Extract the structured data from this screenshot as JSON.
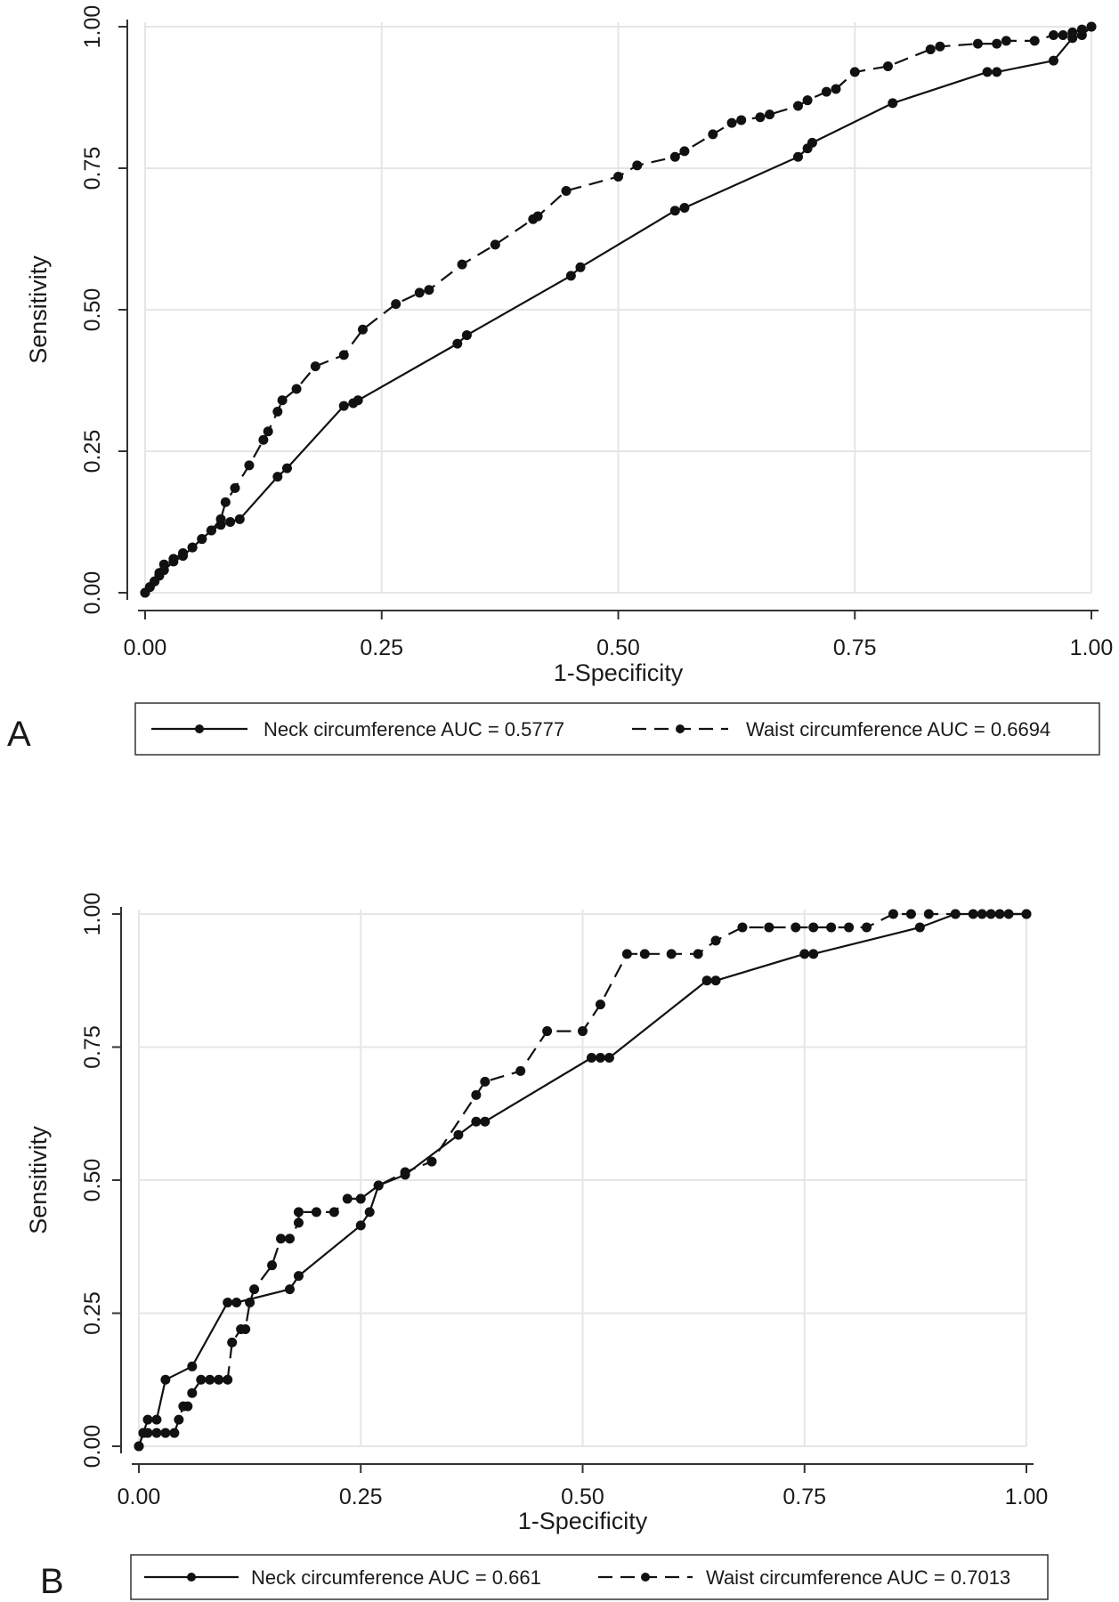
{
  "chart_data": [
    {
      "type": "line",
      "panel": "A",
      "xlabel": "1-Specificity",
      "ylabel": "Sensitivity",
      "xlim": [
        0,
        1
      ],
      "ylim": [
        0,
        1
      ],
      "grid": true,
      "legend_position": "bottom",
      "xticks": [
        "0.00",
        "0.25",
        "0.50",
        "0.75",
        "1.00"
      ],
      "yticks": [
        "0.00",
        "0.25",
        "0.50",
        "0.75",
        "1.00"
      ],
      "series": [
        {
          "name": "Neck circumference AUC = 0.5777",
          "style": "solid",
          "x": [
            0,
            0.005,
            0.01,
            0.015,
            0.02,
            0.03,
            0.04,
            0.05,
            0.06,
            0.07,
            0.08,
            0.09,
            0.1,
            0.14,
            0.15,
            0.21,
            0.22,
            0.225,
            0.33,
            0.34,
            0.45,
            0.46,
            0.56,
            0.57,
            0.69,
            0.7,
            0.705,
            0.79,
            0.89,
            0.9,
            0.96,
            0.98,
            0.99,
            1.0
          ],
          "y": [
            0,
            0.01,
            0.02,
            0.03,
            0.04,
            0.055,
            0.065,
            0.08,
            0.095,
            0.11,
            0.12,
            0.125,
            0.13,
            0.205,
            0.22,
            0.33,
            0.335,
            0.34,
            0.44,
            0.455,
            0.56,
            0.575,
            0.675,
            0.68,
            0.77,
            0.785,
            0.795,
            0.865,
            0.92,
            0.92,
            0.94,
            0.98,
            0.985,
            1.0
          ]
        },
        {
          "name": "Waist circumference AUC = 0.6694",
          "style": "dashed",
          "x": [
            0,
            0.005,
            0.01,
            0.015,
            0.02,
            0.03,
            0.04,
            0.05,
            0.06,
            0.07,
            0.08,
            0.085,
            0.095,
            0.11,
            0.125,
            0.13,
            0.14,
            0.145,
            0.16,
            0.18,
            0.21,
            0.23,
            0.265,
            0.29,
            0.3,
            0.335,
            0.37,
            0.41,
            0.415,
            0.445,
            0.5,
            0.52,
            0.56,
            0.57,
            0.6,
            0.62,
            0.63,
            0.65,
            0.66,
            0.69,
            0.7,
            0.72,
            0.73,
            0.75,
            0.785,
            0.83,
            0.84,
            0.88,
            0.9,
            0.91,
            0.94,
            0.96,
            0.97,
            0.98,
            0.99,
            1.0
          ],
          "y": [
            0,
            0.01,
            0.02,
            0.035,
            0.05,
            0.06,
            0.07,
            0.08,
            0.095,
            0.11,
            0.13,
            0.16,
            0.185,
            0.225,
            0.27,
            0.285,
            0.32,
            0.34,
            0.36,
            0.4,
            0.42,
            0.465,
            0.51,
            0.53,
            0.535,
            0.58,
            0.615,
            0.66,
            0.665,
            0.71,
            0.735,
            0.755,
            0.77,
            0.78,
            0.81,
            0.83,
            0.835,
            0.84,
            0.845,
            0.86,
            0.87,
            0.885,
            0.89,
            0.92,
            0.93,
            0.96,
            0.965,
            0.97,
            0.97,
            0.975,
            0.975,
            0.985,
            0.985,
            0.99,
            0.995,
            1.0
          ]
        }
      ]
    },
    {
      "type": "line",
      "panel": "B",
      "xlabel": "1-Specificity",
      "ylabel": "Sensitivity",
      "xlim": [
        0,
        1
      ],
      "ylim": [
        0,
        1
      ],
      "grid": true,
      "legend_position": "bottom",
      "xticks": [
        "0.00",
        "0.25",
        "0.50",
        "0.75",
        "1.00"
      ],
      "yticks": [
        "0.00",
        "0.25",
        "0.50",
        "0.75",
        "1.00"
      ],
      "series": [
        {
          "name": "Neck circumference AUC = 0.661",
          "style": "solid",
          "x": [
            0,
            0.005,
            0.01,
            0.02,
            0.03,
            0.06,
            0.1,
            0.11,
            0.17,
            0.18,
            0.25,
            0.26,
            0.27,
            0.3,
            0.36,
            0.38,
            0.39,
            0.51,
            0.52,
            0.53,
            0.64,
            0.65,
            0.75,
            0.76,
            0.88,
            0.92,
            0.95,
            0.97,
            1.0
          ],
          "y": [
            0,
            0.025,
            0.05,
            0.05,
            0.125,
            0.15,
            0.27,
            0.27,
            0.295,
            0.32,
            0.415,
            0.44,
            0.49,
            0.51,
            0.585,
            0.61,
            0.61,
            0.73,
            0.73,
            0.73,
            0.875,
            0.875,
            0.925,
            0.925,
            0.975,
            1.0,
            1.0,
            1.0,
            1.0
          ]
        },
        {
          "name": "Waist circumference AUC = 0.7013",
          "style": "dashed",
          "x": [
            0,
            0.005,
            0.01,
            0.02,
            0.03,
            0.04,
            0.045,
            0.05,
            0.055,
            0.06,
            0.07,
            0.08,
            0.09,
            0.1,
            0.105,
            0.115,
            0.12,
            0.125,
            0.13,
            0.15,
            0.16,
            0.17,
            0.18,
            0.18,
            0.2,
            0.22,
            0.235,
            0.25,
            0.27,
            0.3,
            0.33,
            0.38,
            0.39,
            0.43,
            0.46,
            0.5,
            0.52,
            0.55,
            0.57,
            0.6,
            0.63,
            0.65,
            0.68,
            0.71,
            0.74,
            0.76,
            0.78,
            0.8,
            0.82,
            0.85,
            0.87,
            0.89,
            0.92,
            0.94,
            0.96,
            0.98,
            1.0
          ],
          "y": [
            0,
            0.025,
            0.025,
            0.025,
            0.025,
            0.025,
            0.05,
            0.075,
            0.075,
            0.1,
            0.125,
            0.125,
            0.125,
            0.125,
            0.195,
            0.22,
            0.22,
            0.27,
            0.295,
            0.34,
            0.39,
            0.39,
            0.42,
            0.44,
            0.44,
            0.44,
            0.465,
            0.465,
            0.49,
            0.515,
            0.535,
            0.66,
            0.685,
            0.705,
            0.78,
            0.78,
            0.83,
            0.925,
            0.925,
            0.925,
            0.925,
            0.95,
            0.975,
            0.975,
            0.975,
            0.975,
            0.975,
            0.975,
            0.975,
            1.0,
            1.0,
            1.0,
            1.0,
            1.0,
            1.0,
            1.0,
            1.0
          ]
        }
      ]
    }
  ]
}
